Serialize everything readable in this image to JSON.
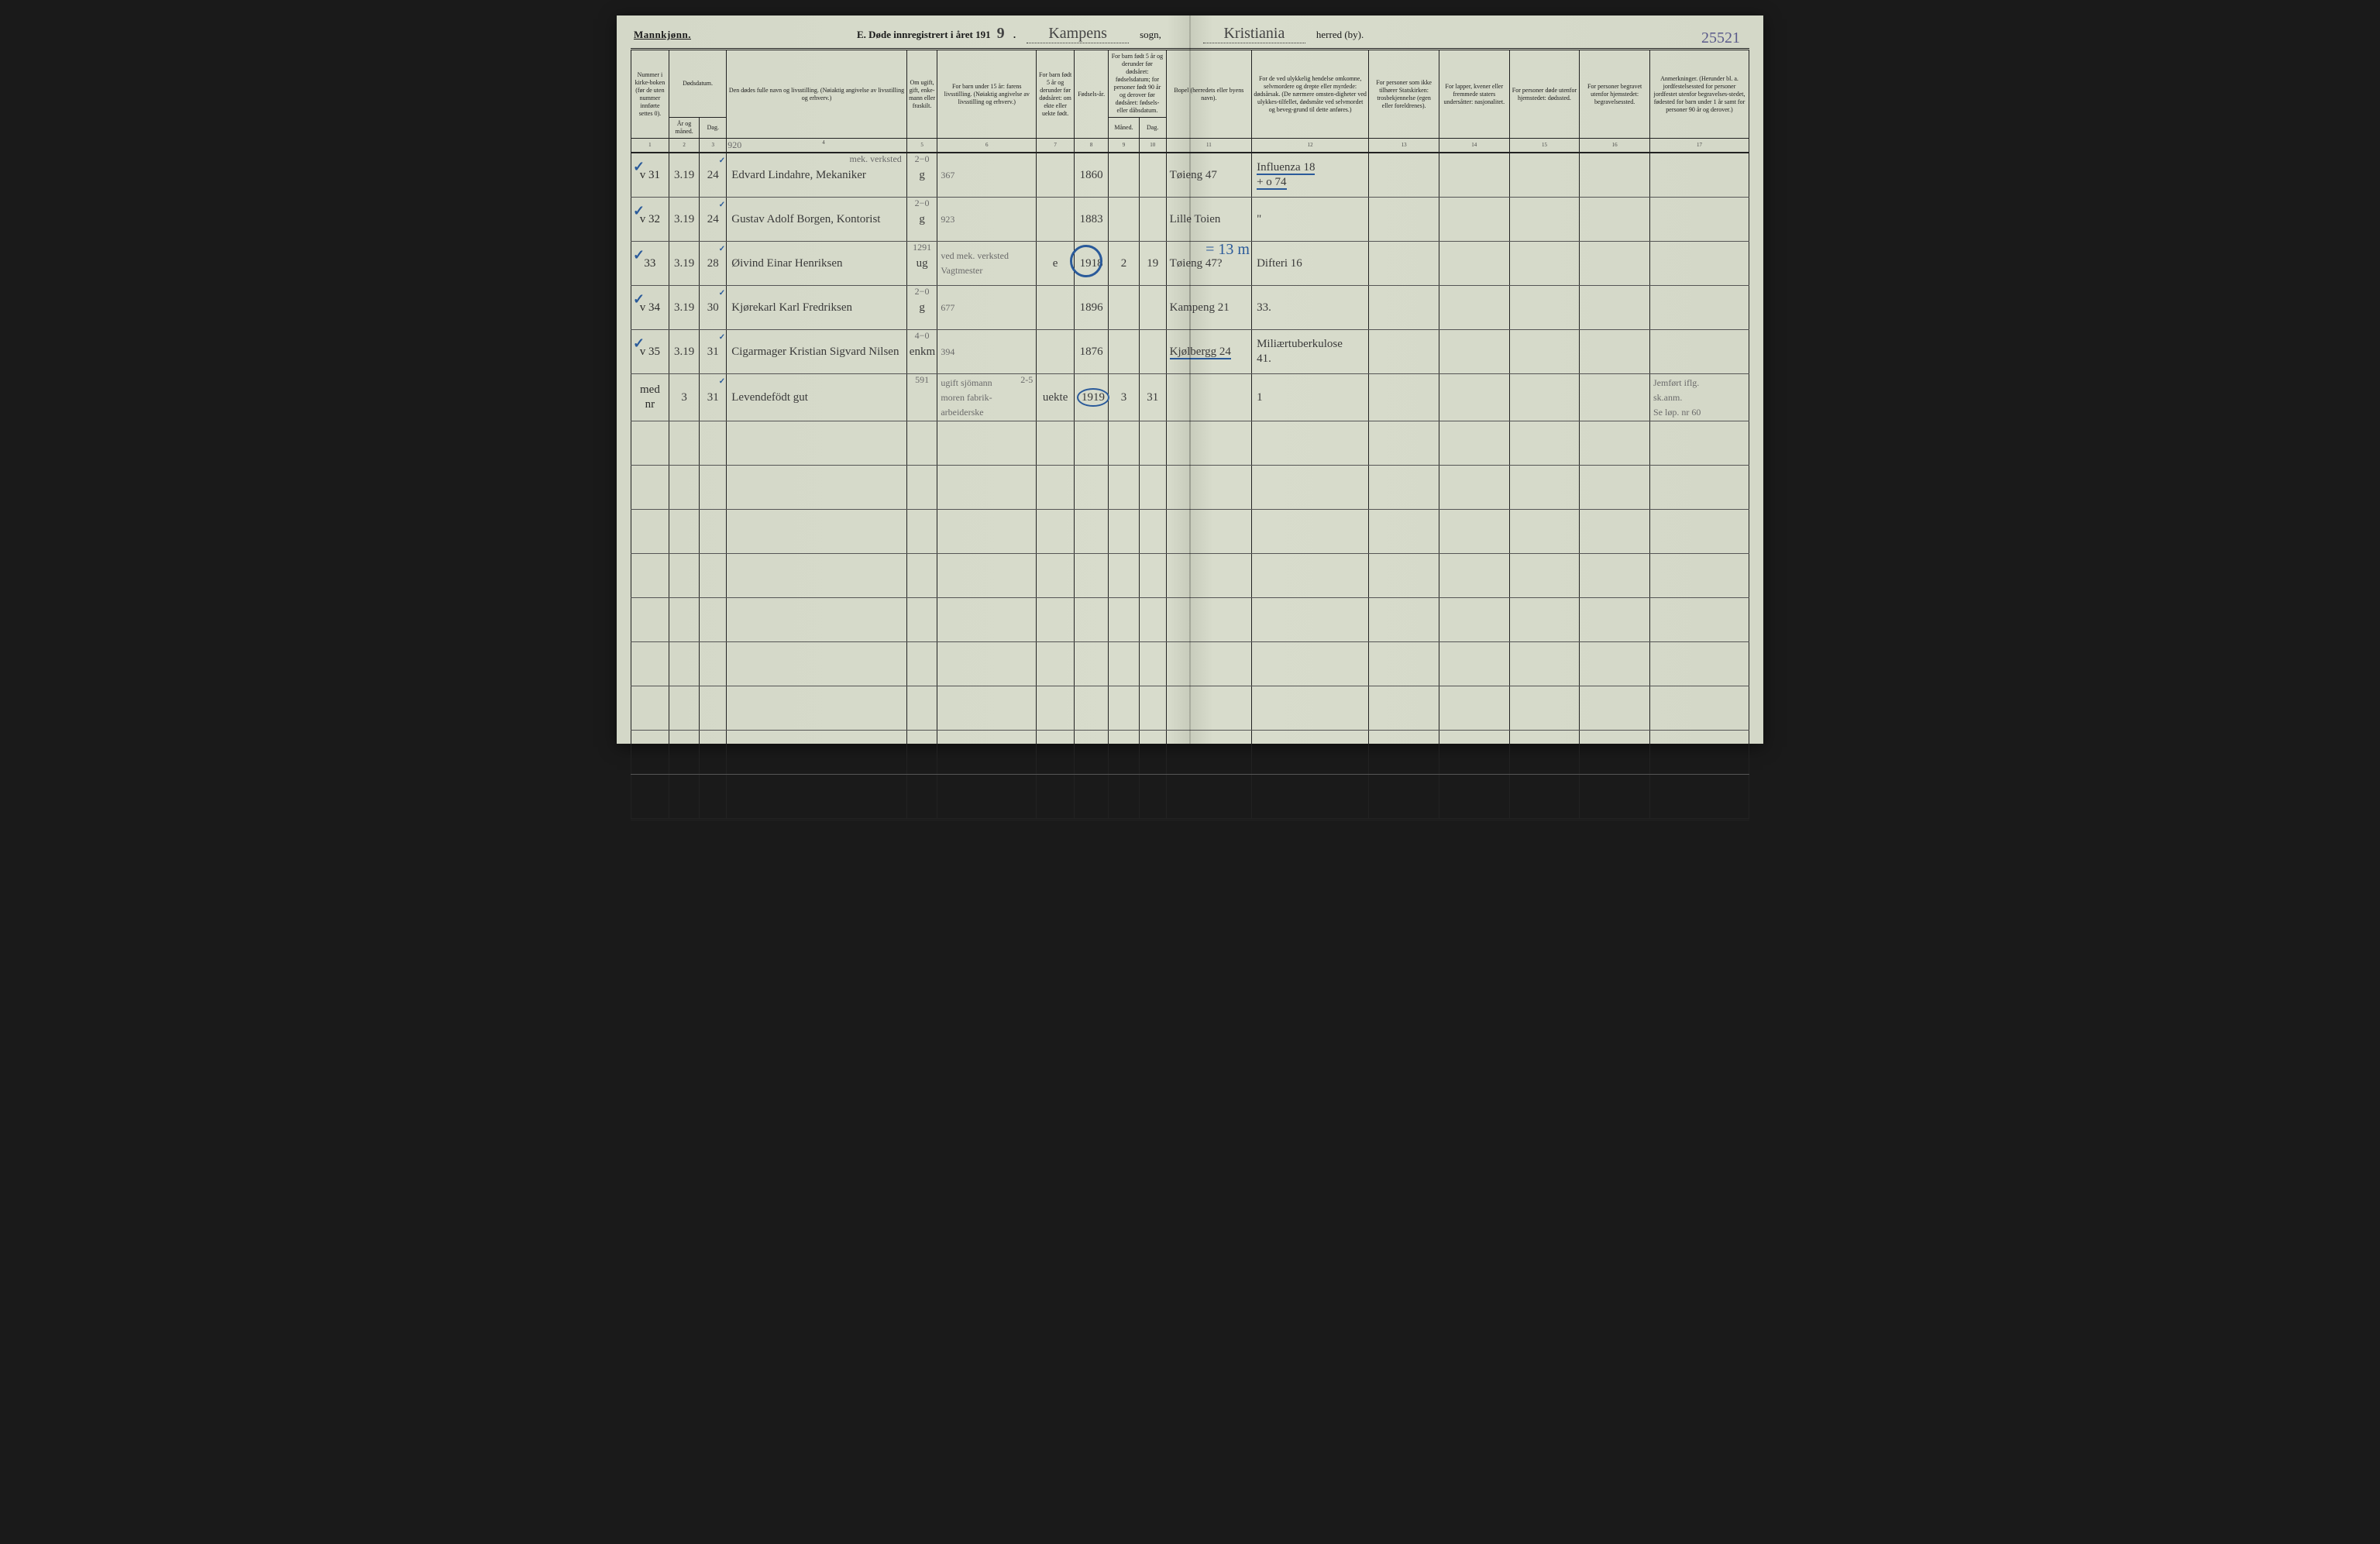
{
  "header": {
    "gender": "Mannkjønn.",
    "title_prefix": "E. Døde innregistrert i året 191",
    "year_suffix": "9",
    "sogn_label": "sogn,",
    "sogn_value": "Kampens",
    "herred_label": "herred (by).",
    "herred_value": "Kristiania",
    "page_number": "25521"
  },
  "columns": {
    "c1": "Nummer i kirke-boken (før de uten nummer innførte settes 0).",
    "c2a": "Dødsdatum.",
    "c2_ar": "År og måned.",
    "c2_dag": "Dag.",
    "c4": "Den dødes fulle navn og livsstilling. (Nøiaktig angivelse av livsstilling og erhverv.)",
    "c5": "Om ugift, gift, enke-mann eller fraskilt.",
    "c6": "For barn under 15 år: farens livsstilling. (Nøiaktig angivelse av livsstilling og erhverv.)",
    "c7": "For barn født 5 år og derunder før dødsåret: om ekte eller uekte født.",
    "c8": "Fødsels-år.",
    "c9a": "For barn født 5 år og derunder før dødsåret: fødselsdatum; for personer født 90 år og derover før dødsåret: fødsels- eller dåbsdatum.",
    "c9_m": "Måned.",
    "c9_d": "Dag.",
    "c11": "Bopel (herredets eller byens navn).",
    "c12": "For de ved ulykkelig hendelse omkomne, selvmordere og drepte eller myrdede: dødsårsak. (De nærmere omsten-digheter ved ulykkes-tilfellet, dødsmåte ved selvmordet og beveg-grund til dette anføres.)",
    "c13": "For personer som ikke tilhører Statskirken: trosbekjennelse (egen eller foreldrenes).",
    "c14": "For lapper, kvener eller fremmede staters undersåtter: nasjonalitet.",
    "c15": "For personer døde utenfor hjemstedet: dødssted.",
    "c16": "For personer begravet utenfor hjemstedet: begravelsessted.",
    "c17": "Anmerkninger. (Herunder bl. a. jordfestelsessted for personer jordfestet utenfor begravelses-stedet, fødested for barn under 1 år samt for personer 90 år og derover.)"
  },
  "colnums": [
    "1",
    "2",
    "3",
    "4",
    "5",
    "6",
    "7",
    "8",
    "9",
    "10",
    "11",
    "12",
    "13",
    "14",
    "15",
    "16",
    "17"
  ],
  "pencil_header": "920",
  "rows": [
    {
      "num": "v 31",
      "tick": "✓",
      "ar": "3.19",
      "dag": "24",
      "navn": "Edvard Lindahre, Mekaniker",
      "navn_over": "mek. verksted",
      "status": "g",
      "status_over": "2−0",
      "faren": "367",
      "fodselsar": "1860",
      "bopel": "Tøieng 47",
      "dodsaarsak": "Influenza 18\n+ o 74"
    },
    {
      "num": "v 32",
      "tick": "✓",
      "ar": "3.19",
      "dag": "24",
      "navn": "Gustav Adolf Borgen, Kontorist",
      "status": "g",
      "status_over": "2−0",
      "faren": "923",
      "fodselsar": "1883",
      "bopel": "Lille Toien",
      "dodsaarsak": "\""
    },
    {
      "num": "33",
      "tick": "✓",
      "ar": "3.19",
      "dag": "28",
      "navn": "Øivind Einar Henriksen",
      "status": "ug",
      "status_over": "1291",
      "faren": "ved mek. verksted Vagtmester",
      "ekte": "e",
      "fodselsar": "1918",
      "maned": "2",
      "dag9": "19",
      "bopel": "Tøieng 47?",
      "dodsaarsak": "Difteri 16",
      "blue_annot": "= 13 m"
    },
    {
      "num": "v 34",
      "tick": "✓",
      "ar": "3.19",
      "dag": "30",
      "navn": "Kjørekarl Karl Fredriksen",
      "status": "g",
      "status_over": "2−0",
      "faren": "677",
      "fodselsar": "1896",
      "bopel": "Kampeng 21",
      "dodsaarsak": "33."
    },
    {
      "num": "v 35",
      "tick": "✓",
      "ar": "3.19",
      "dag": "31",
      "navn": "Cigarmager Kristian Sigvard Nilsen",
      "status": "enkm",
      "status_over": "4−0",
      "faren": "394",
      "fodselsar": "1876",
      "bopel": "Kjølbergg 24",
      "dodsaarsak": "Miliærtuberkulose\n41."
    },
    {
      "num": "med nr",
      "ar": "3",
      "dag": "31",
      "navn": "Levendefödt gut",
      "status": "",
      "status_over": "591",
      "faren": "ugift sjömann\nmoren fabrik-arbeiderske",
      "faren_over": "2-5",
      "ekte": "uekte",
      "fodselsar": "1919",
      "maned": "3",
      "dag9": "31",
      "dodsaarsak": "1",
      "anm": "Jemført iflg.\nsk.anm.\nSe løp. nr 60"
    }
  ]
}
